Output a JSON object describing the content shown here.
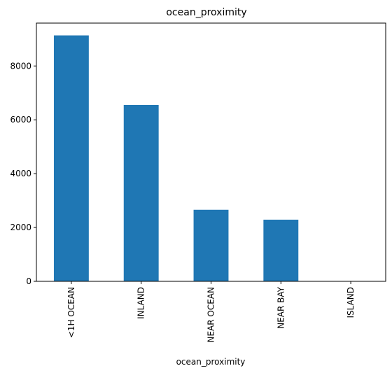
{
  "chart_data": {
    "type": "bar",
    "title": "ocean_proximity",
    "xlabel": "ocean_proximity",
    "ylabel": "",
    "categories": [
      "<1H OCEAN",
      "INLAND",
      "NEAR OCEAN",
      "NEAR BAY",
      "ISLAND"
    ],
    "values": [
      9136,
      6551,
      2658,
      2290,
      5
    ],
    "ylim": [
      0,
      9592.8
    ],
    "yticks": [
      0,
      2000,
      4000,
      6000,
      8000
    ],
    "grid": false,
    "bar_color": "#1f77b4"
  }
}
